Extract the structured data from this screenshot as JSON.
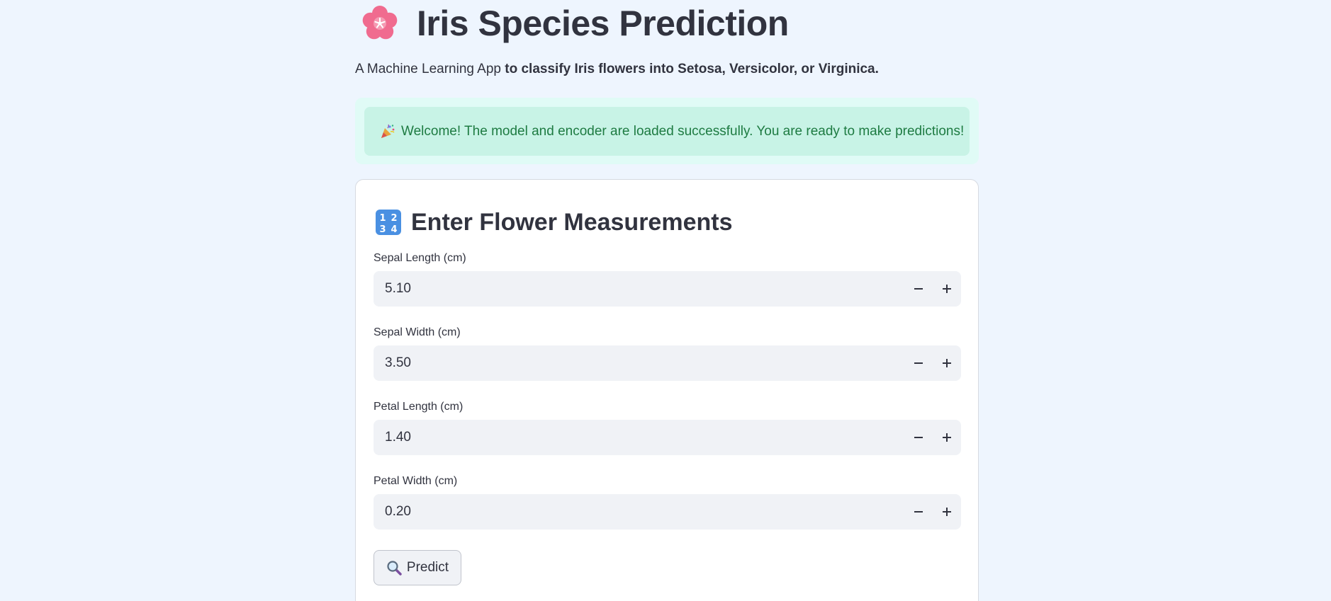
{
  "header": {
    "icon": "cherry-blossom-icon",
    "title": "Iris Species Prediction",
    "subtitle_a": "A Machine Learning App",
    "subtitle_b": " to classify Iris flowers into Setosa, Versicolor, or Virginica."
  },
  "alert": {
    "icon": "party-popper-icon",
    "text": "Welcome! The model and encoder are loaded successfully. You are ready to make predictions!",
    "color": "#1e7b42",
    "background": "#c8f3e6"
  },
  "form": {
    "icon": "input-numbers-icon",
    "title": "Enter Flower Measurements",
    "fields": [
      {
        "label": "Sepal Length (cm)",
        "value": "5.10"
      },
      {
        "label": "Sepal Width (cm)",
        "value": "3.50"
      },
      {
        "label": "Petal Length (cm)",
        "value": "1.40"
      },
      {
        "label": "Petal Width (cm)",
        "value": "0.20"
      }
    ],
    "minus_symbol": "−",
    "plus_symbol": "+",
    "predict_label": "Predict",
    "predict_icon": "search-icon"
  },
  "colors": {
    "page_background": "#eef5fe",
    "text": "#31333f",
    "input_background": "#f0f2f6"
  }
}
